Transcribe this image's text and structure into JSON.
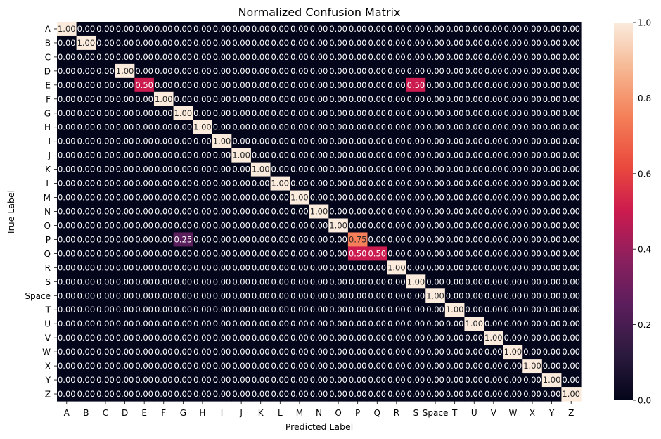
{
  "chart_data": {
    "type": "heatmap",
    "title": "Normalized Confusion Matrix",
    "xlabel": "Predicted Label",
    "ylabel": "True Label",
    "x_categories": [
      "A",
      "B",
      "C",
      "D",
      "E",
      "F",
      "G",
      "H",
      "I",
      "J",
      "K",
      "L",
      "M",
      "N",
      "O",
      "P",
      "Q",
      "R",
      "S",
      "Space",
      "T",
      "U",
      "V",
      "W",
      "X",
      "Y",
      "Z"
    ],
    "y_categories": [
      "A",
      "B",
      "C",
      "D",
      "E",
      "F",
      "G",
      "H",
      "I",
      "J",
      "K",
      "L",
      "M",
      "N",
      "O",
      "P",
      "Q",
      "R",
      "S",
      "Space",
      "T",
      "U",
      "V",
      "W",
      "X",
      "Y",
      "Z"
    ],
    "nonzero_cells": [
      {
        "row": "A",
        "col": "A",
        "value": 1.0
      },
      {
        "row": "B",
        "col": "B",
        "value": 1.0
      },
      {
        "row": "D",
        "col": "D",
        "value": 1.0
      },
      {
        "row": "E",
        "col": "E",
        "value": 0.5
      },
      {
        "row": "E",
        "col": "S",
        "value": 0.5
      },
      {
        "row": "F",
        "col": "F",
        "value": 1.0
      },
      {
        "row": "G",
        "col": "G",
        "value": 1.0
      },
      {
        "row": "H",
        "col": "H",
        "value": 1.0
      },
      {
        "row": "I",
        "col": "I",
        "value": 1.0
      },
      {
        "row": "J",
        "col": "J",
        "value": 1.0
      },
      {
        "row": "K",
        "col": "K",
        "value": 1.0
      },
      {
        "row": "L",
        "col": "L",
        "value": 1.0
      },
      {
        "row": "M",
        "col": "M",
        "value": 1.0
      },
      {
        "row": "N",
        "col": "N",
        "value": 1.0
      },
      {
        "row": "O",
        "col": "O",
        "value": 1.0
      },
      {
        "row": "P",
        "col": "G",
        "value": 0.25
      },
      {
        "row": "P",
        "col": "P",
        "value": 0.75
      },
      {
        "row": "Q",
        "col": "P",
        "value": 0.5
      },
      {
        "row": "Q",
        "col": "Q",
        "value": 0.5
      },
      {
        "row": "R",
        "col": "R",
        "value": 1.0
      },
      {
        "row": "S",
        "col": "S",
        "value": 1.0
      },
      {
        "row": "Space",
        "col": "Space",
        "value": 1.0
      },
      {
        "row": "T",
        "col": "T",
        "value": 1.0
      },
      {
        "row": "U",
        "col": "U",
        "value": 1.0
      },
      {
        "row": "V",
        "col": "V",
        "value": 1.0
      },
      {
        "row": "W",
        "col": "W",
        "value": 1.0
      },
      {
        "row": "X",
        "col": "X",
        "value": 1.0
      },
      {
        "row": "Y",
        "col": "Y",
        "value": 1.0
      },
      {
        "row": "Z",
        "col": "Z",
        "value": 1.0
      }
    ],
    "default_value": 0.0,
    "value_format": "0.00",
    "colormap": "rocket",
    "colorbar": {
      "range": [
        0.0,
        1.0
      ],
      "ticks": [
        "0.0",
        "0.2",
        "0.4",
        "0.6",
        "0.8",
        "1.0"
      ]
    },
    "grid": false,
    "legend": "colorbar-right"
  }
}
